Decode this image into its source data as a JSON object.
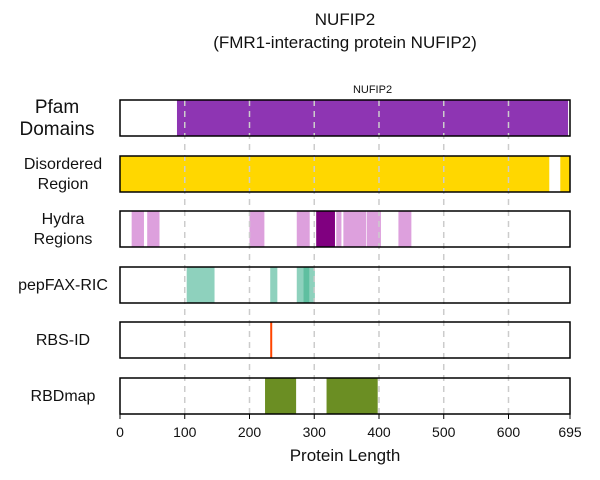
{
  "title": "NUFIP2",
  "subtitle": "(FMR1-interacting protein NUFIP2)",
  "chart_data": {
    "type": "protein-track",
    "title": "NUFIP2",
    "subtitle": "(FMR1-interacting protein NUFIP2)",
    "xlabel": "Protein Length",
    "xlim": [
      0,
      695
    ],
    "xticks": [
      0,
      100,
      200,
      300,
      400,
      500,
      600,
      695
    ],
    "grid": "vertical dashed at 100,200,300,400,500,600",
    "tracks": [
      {
        "id": "pfam",
        "label": "Pfam\nDomains",
        "label_lines": [
          "Pfam",
          "Domains"
        ],
        "segments": [
          {
            "start": 88,
            "end": 692,
            "color": "#8E35B3",
            "name": "NUFIP2"
          }
        ]
      },
      {
        "id": "disordered",
        "label_lines": [
          "Disordered",
          "Region"
        ],
        "segments": [
          {
            "start": 0,
            "end": 663,
            "color": "#FFD700"
          },
          {
            "start": 680,
            "end": 695,
            "color": "#FFD700"
          }
        ]
      },
      {
        "id": "hydra",
        "label_lines": [
          "Hydra",
          "Regions"
        ],
        "segments": [
          {
            "start": 18,
            "end": 37,
            "color": "#DDA0DD"
          },
          {
            "start": 42,
            "end": 61,
            "color": "#DDA0DD"
          },
          {
            "start": 200,
            "end": 223,
            "color": "#DDA0DD"
          },
          {
            "start": 273,
            "end": 293,
            "color": "#DDA0DD"
          },
          {
            "start": 303,
            "end": 332,
            "color": "#800080"
          },
          {
            "start": 334,
            "end": 342,
            "color": "#DDA0DD"
          },
          {
            "start": 345,
            "end": 380,
            "color": "#DDA0DD"
          },
          {
            "start": 381,
            "end": 403,
            "color": "#DDA0DD"
          },
          {
            "start": 430,
            "end": 450,
            "color": "#DDA0DD"
          }
        ]
      },
      {
        "id": "pepfax",
        "label_lines": [
          "pepFAX-RIC"
        ],
        "segments": [
          {
            "start": 103,
            "end": 122,
            "color": "#8ED1BD"
          },
          {
            "start": 121,
            "end": 141,
            "color": "#8ED1BD"
          },
          {
            "start": 137,
            "end": 146,
            "color": "#8ED1BD"
          },
          {
            "start": 232,
            "end": 243,
            "color": "#8ED1BD"
          },
          {
            "start": 273,
            "end": 283,
            "color": "#8ED1BD"
          },
          {
            "start": 283,
            "end": 293,
            "color": "#5FBFA0"
          },
          {
            "start": 293,
            "end": 301,
            "color": "#8ED1BD"
          }
        ]
      },
      {
        "id": "rbsid",
        "label_lines": [
          "RBS-ID"
        ],
        "segments": [
          {
            "start": 232,
            "end": 234,
            "color": "#FF4500"
          }
        ]
      },
      {
        "id": "rbdmap",
        "label_lines": [
          "RBDmap"
        ],
        "segments": [
          {
            "start": 224,
            "end": 272,
            "color": "#6B8E23"
          },
          {
            "start": 319,
            "end": 398,
            "color": "#6B8E23"
          }
        ]
      }
    ]
  }
}
